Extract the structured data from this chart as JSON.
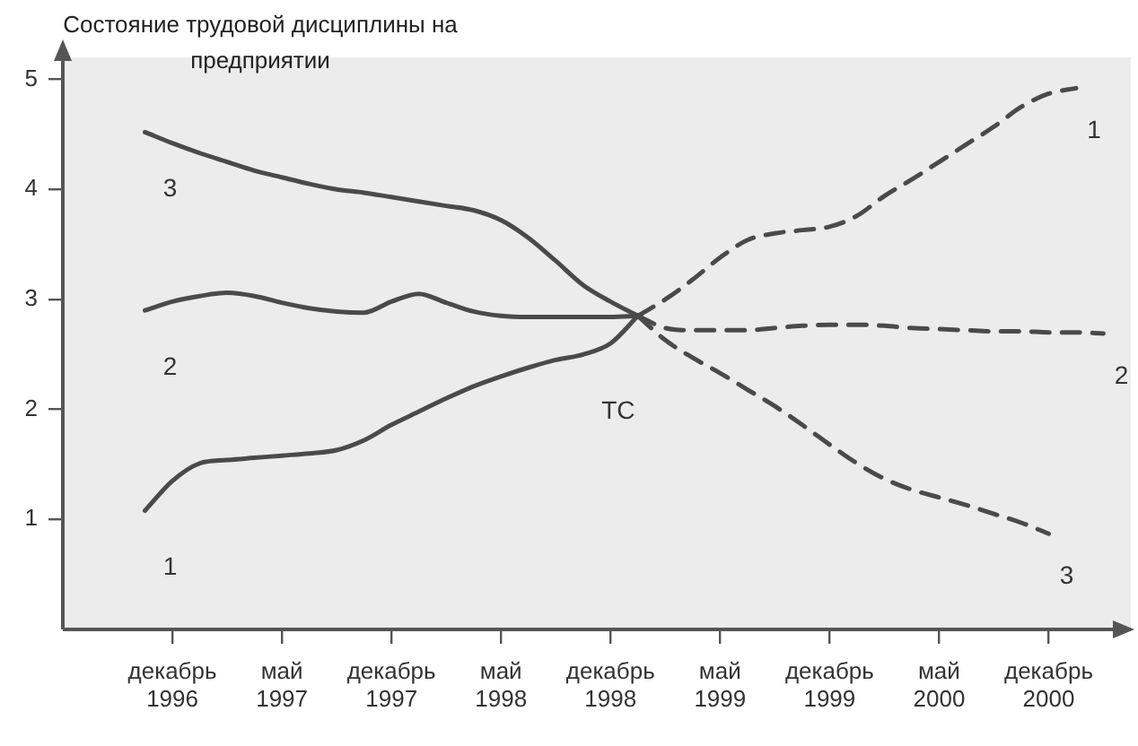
{
  "chart_data": {
    "type": "line",
    "ylabel": "Состояние трудовой дисциплины на предприятии",
    "ylim": [
      0,
      5.2
    ],
    "yticks": [
      1,
      2,
      3,
      4,
      5
    ],
    "grid": false,
    "legend": false,
    "marker": "none",
    "categories": [
      null,
      null,
      "декабрь 1996",
      null,
      null,
      null,
      "май 1997",
      null,
      null,
      null,
      "декабрь 1997",
      null,
      null,
      null,
      "май 1998",
      null,
      null,
      null,
      "декабрь 1998",
      null,
      null,
      null,
      "май 1999",
      null,
      null,
      null,
      "декабрь 1999",
      null,
      null,
      null,
      "май 2000",
      null,
      null,
      null,
      "декабрь 2000",
      null,
      null
    ],
    "series": [
      {
        "name": "3",
        "color": "#4a4a4a",
        "line_style": "solid",
        "values": [
          null,
          4.52,
          4.42,
          4.33,
          4.25,
          4.17,
          4.11,
          4.05,
          4.0,
          3.97,
          3.93,
          3.89,
          3.85,
          3.81,
          3.72,
          3.56,
          3.35,
          3.13,
          2.98,
          2.85,
          null,
          null,
          null,
          null,
          null,
          null,
          null,
          null,
          null,
          null,
          null,
          null,
          null,
          null,
          null,
          null,
          null
        ]
      },
      {
        "name": "2",
        "color": "#4a4a4a",
        "line_style": "solid",
        "values": [
          null,
          2.9,
          2.98,
          3.03,
          3.06,
          3.03,
          2.97,
          2.92,
          2.89,
          2.88,
          2.98,
          3.05,
          2.97,
          2.89,
          2.85,
          2.84,
          2.84,
          2.84,
          2.84,
          2.85,
          null,
          null,
          null,
          null,
          null,
          null,
          null,
          null,
          null,
          null,
          null,
          null,
          null,
          null,
          null,
          null,
          null
        ]
      },
      {
        "name": "1",
        "color": "#4a4a4a",
        "line_style": "solid",
        "values": [
          null,
          1.08,
          1.35,
          1.51,
          1.54,
          1.56,
          1.58,
          1.6,
          1.63,
          1.72,
          1.86,
          1.98,
          2.1,
          2.21,
          2.3,
          2.38,
          2.45,
          2.5,
          2.6,
          2.85,
          null,
          null,
          null,
          null,
          null,
          null,
          null,
          null,
          null,
          null,
          null,
          null,
          null,
          null,
          null,
          null,
          null
        ]
      },
      {
        "name": "1",
        "color": "#4a4a4a",
        "line_style": "dashed",
        "values": [
          null,
          null,
          null,
          null,
          null,
          null,
          null,
          null,
          null,
          null,
          null,
          null,
          null,
          null,
          null,
          null,
          null,
          null,
          null,
          2.85,
          3.0,
          3.18,
          3.38,
          3.54,
          3.6,
          3.63,
          3.66,
          3.76,
          3.94,
          4.09,
          4.25,
          4.41,
          4.57,
          4.75,
          4.87,
          4.92,
          null
        ]
      },
      {
        "name": "2",
        "color": "#4a4a4a",
        "line_style": "dashed",
        "values": [
          null,
          null,
          null,
          null,
          null,
          null,
          null,
          null,
          null,
          null,
          null,
          null,
          null,
          null,
          null,
          null,
          null,
          null,
          null,
          2.85,
          2.74,
          2.72,
          2.72,
          2.72,
          2.74,
          2.76,
          2.77,
          2.77,
          2.76,
          2.74,
          2.73,
          2.72,
          2.71,
          2.71,
          2.7,
          2.7,
          2.69
        ]
      },
      {
        "name": "3",
        "color": "#4a4a4a",
        "line_style": "dashed",
        "values": [
          null,
          null,
          null,
          null,
          null,
          null,
          null,
          null,
          null,
          null,
          null,
          null,
          null,
          null,
          null,
          null,
          null,
          null,
          null,
          2.85,
          2.63,
          2.47,
          2.33,
          2.18,
          2.03,
          1.86,
          1.68,
          1.51,
          1.37,
          1.27,
          1.2,
          1.13,
          1.05,
          0.97,
          0.87,
          null,
          null
        ]
      }
    ],
    "annotations": [
      "ТС"
    ]
  }
}
